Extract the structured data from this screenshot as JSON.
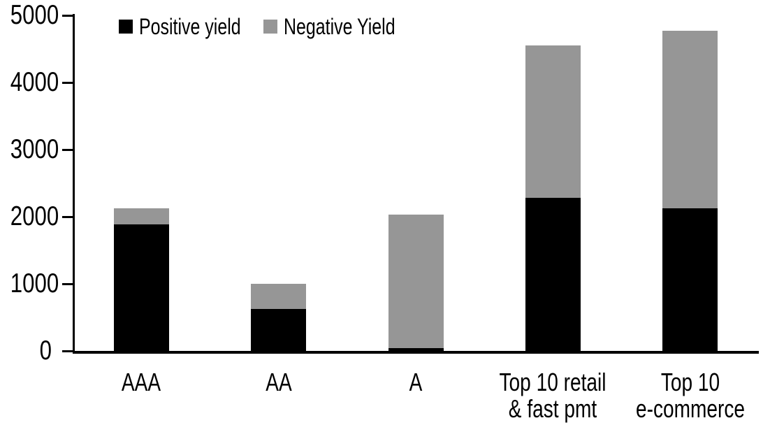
{
  "chart_data": {
    "type": "bar",
    "stacked": true,
    "title": "",
    "xlabel": "",
    "ylabel": "",
    "categories": [
      "AAA",
      "AA",
      "A",
      "Top 10 retail\n& fast pmt",
      "Top 10\ne-commerce"
    ],
    "series": [
      {
        "name": "Positive yield",
        "color": "#000000",
        "values": [
          1890,
          620,
          45,
          2280,
          2130
        ]
      },
      {
        "name": "Negative Yield",
        "color": "#969696",
        "values": [
          230,
          385,
          1985,
          2270,
          2640
        ]
      }
    ],
    "totals": [
      2120,
      1005,
      2030,
      4550,
      4770
    ],
    "ylim": [
      0,
      5000
    ],
    "yticks": [
      0,
      1000,
      2000,
      3000,
      4000,
      5000
    ],
    "grid": false,
    "legend_position": "top"
  },
  "colors": {
    "background": "#ffffff",
    "axis": "#000000",
    "text": "#000000",
    "positive_series": "#000000",
    "negative_series": "#969696"
  }
}
